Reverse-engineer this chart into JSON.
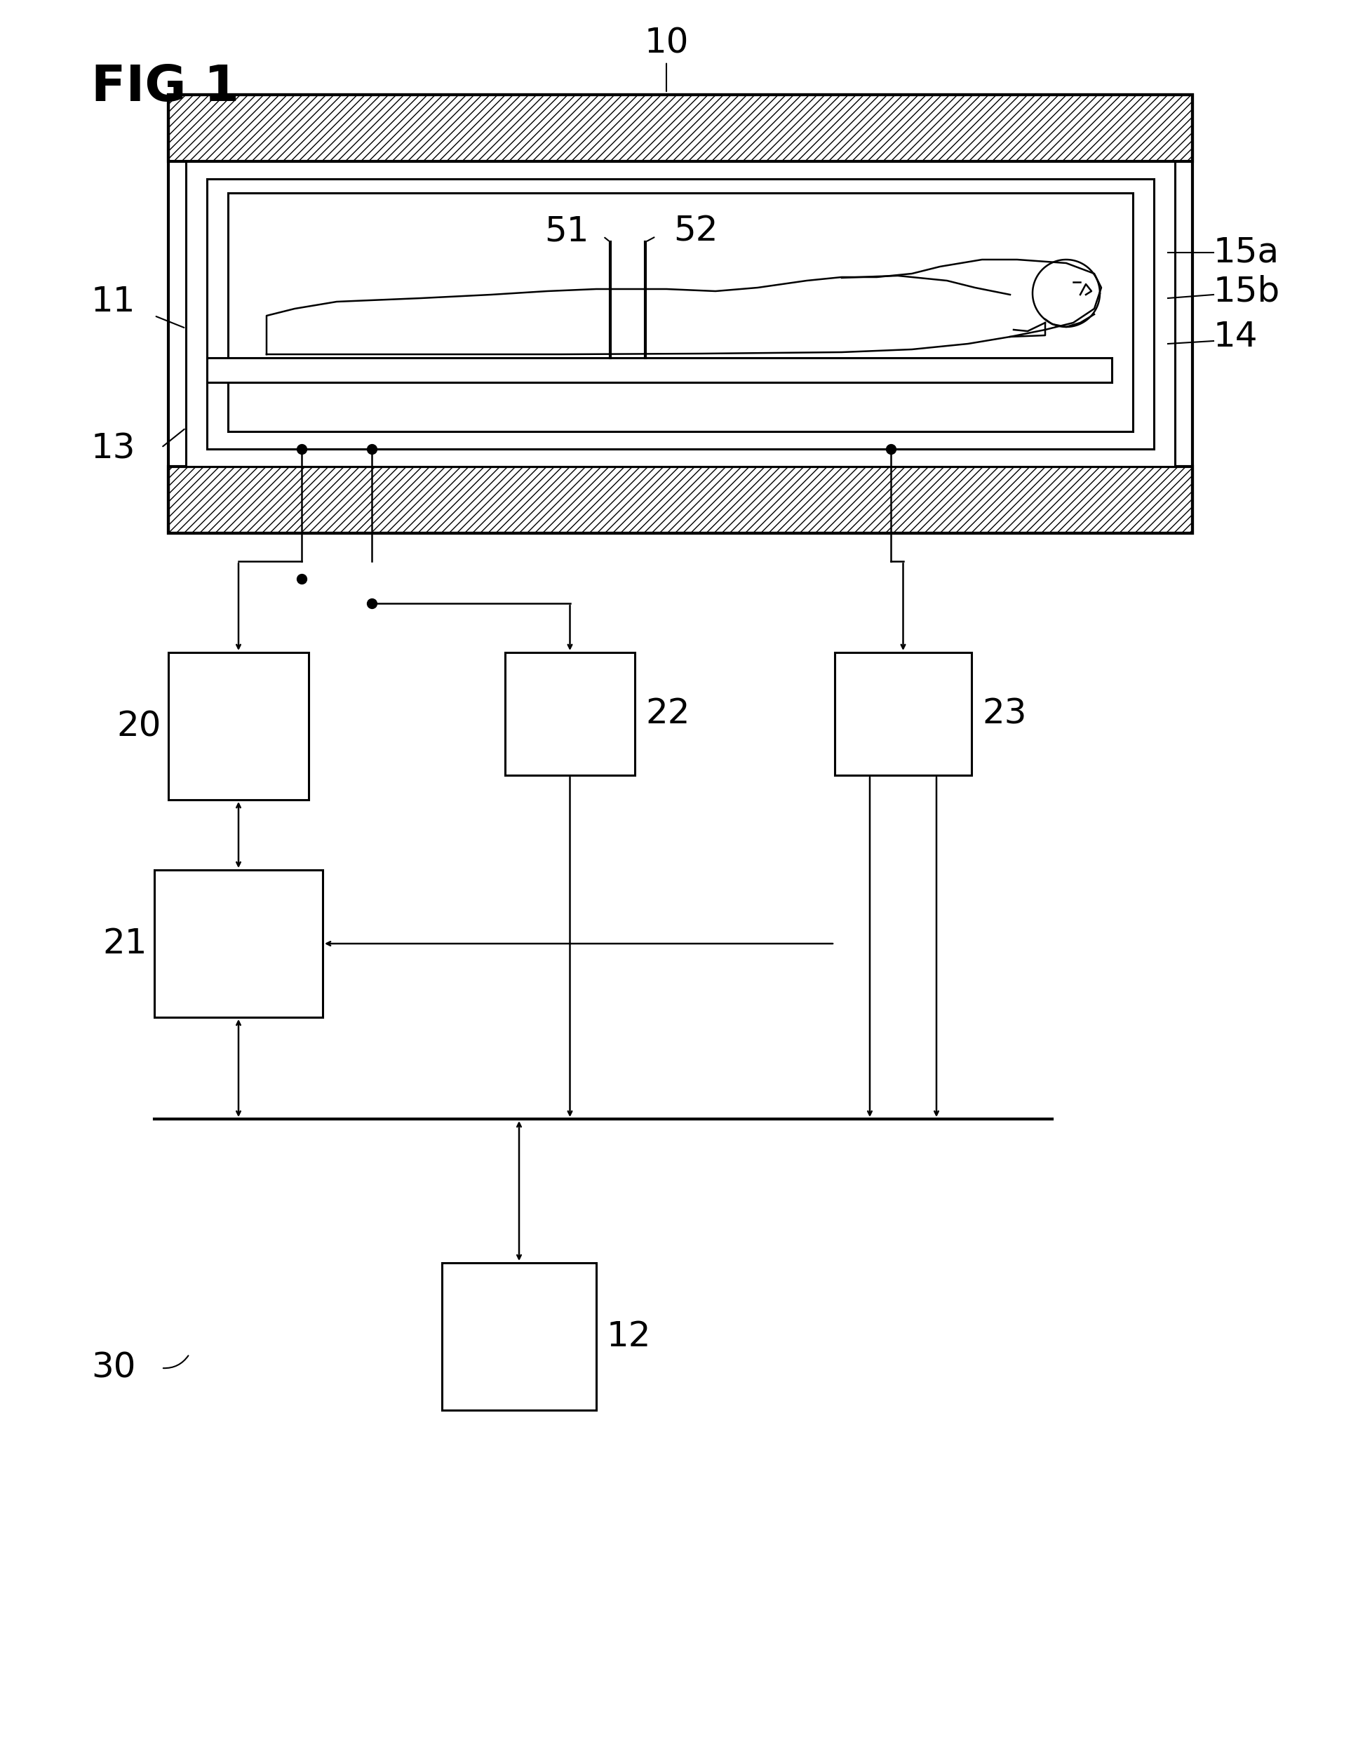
{
  "fig_label": "FIG 1",
  "background_color": "#ffffff",
  "label_10": "10",
  "label_11": "11",
  "label_12": "12",
  "label_13": "13",
  "label_14": "14",
  "label_15a": "15a",
  "label_15b": "15b",
  "label_20": "20",
  "label_21": "21",
  "label_22": "22",
  "label_23": "23",
  "label_30": "30",
  "label_51": "51",
  "label_52": "52"
}
